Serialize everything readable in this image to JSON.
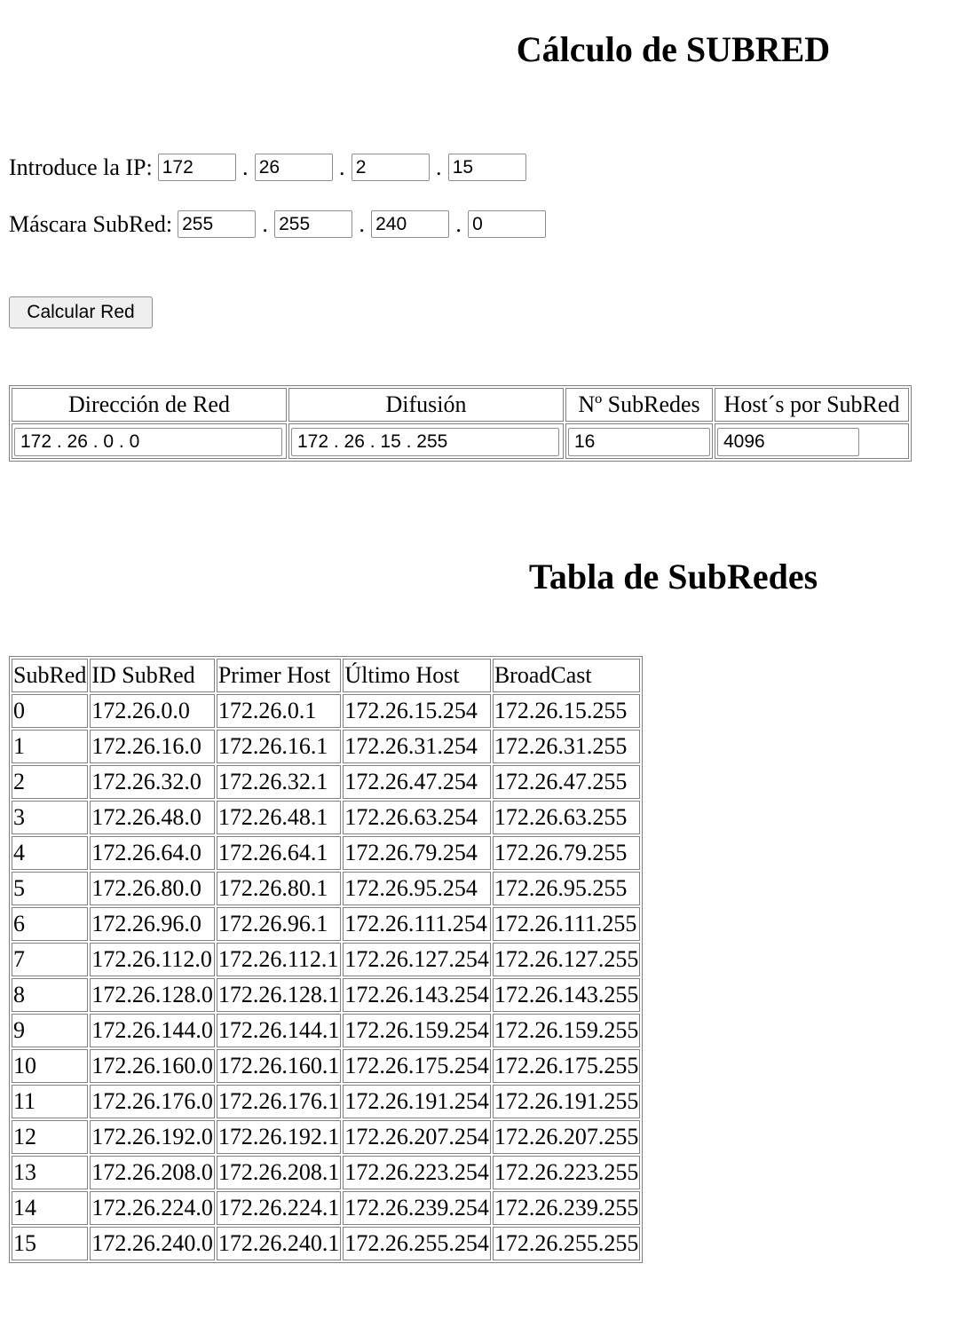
{
  "title": "Cálculo de SUBRED",
  "ip": {
    "label": "Introduce la IP:",
    "octets": [
      "172",
      "26",
      "2",
      "15"
    ]
  },
  "mask": {
    "label": "Máscara SubRed:",
    "octets": [
      "255",
      "255",
      "240",
      "0"
    ]
  },
  "separator": ".",
  "calculate_button": "Calcular Red",
  "result": {
    "headers": [
      "Dirección de Red",
      "Difusión",
      "Nº SubRedes",
      "Host´s por SubRed"
    ],
    "values": [
      "172 . 26 . 0 . 0",
      "172 . 26 . 15 . 255",
      "16",
      "4096"
    ]
  },
  "subnet_table": {
    "title": "Tabla de SubRedes",
    "headers": [
      "SubRed",
      "ID SubRed",
      "Primer Host",
      "Último Host",
      "BroadCast"
    ],
    "rows": [
      [
        "0",
        "172.26.0.0",
        "172.26.0.1",
        "172.26.15.254",
        "172.26.15.255"
      ],
      [
        "1",
        "172.26.16.0",
        "172.26.16.1",
        "172.26.31.254",
        "172.26.31.255"
      ],
      [
        "2",
        "172.26.32.0",
        "172.26.32.1",
        "172.26.47.254",
        "172.26.47.255"
      ],
      [
        "3",
        "172.26.48.0",
        "172.26.48.1",
        "172.26.63.254",
        "172.26.63.255"
      ],
      [
        "4",
        "172.26.64.0",
        "172.26.64.1",
        "172.26.79.254",
        "172.26.79.255"
      ],
      [
        "5",
        "172.26.80.0",
        "172.26.80.1",
        "172.26.95.254",
        "172.26.95.255"
      ],
      [
        "6",
        "172.26.96.0",
        "172.26.96.1",
        "172.26.111.254",
        "172.26.111.255"
      ],
      [
        "7",
        "172.26.112.0",
        "172.26.112.1",
        "172.26.127.254",
        "172.26.127.255"
      ],
      [
        "8",
        "172.26.128.0",
        "172.26.128.1",
        "172.26.143.254",
        "172.26.143.255"
      ],
      [
        "9",
        "172.26.144.0",
        "172.26.144.1",
        "172.26.159.254",
        "172.26.159.255"
      ],
      [
        "10",
        "172.26.160.0",
        "172.26.160.1",
        "172.26.175.254",
        "172.26.175.255"
      ],
      [
        "11",
        "172.26.176.0",
        "172.26.176.1",
        "172.26.191.254",
        "172.26.191.255"
      ],
      [
        "12",
        "172.26.192.0",
        "172.26.192.1",
        "172.26.207.254",
        "172.26.207.255"
      ],
      [
        "13",
        "172.26.208.0",
        "172.26.208.1",
        "172.26.223.254",
        "172.26.223.255"
      ],
      [
        "14",
        "172.26.224.0",
        "172.26.224.1",
        "172.26.239.254",
        "172.26.239.255"
      ],
      [
        "15",
        "172.26.240.0",
        "172.26.240.1",
        "172.26.255.254",
        "172.26.255.255"
      ]
    ]
  }
}
